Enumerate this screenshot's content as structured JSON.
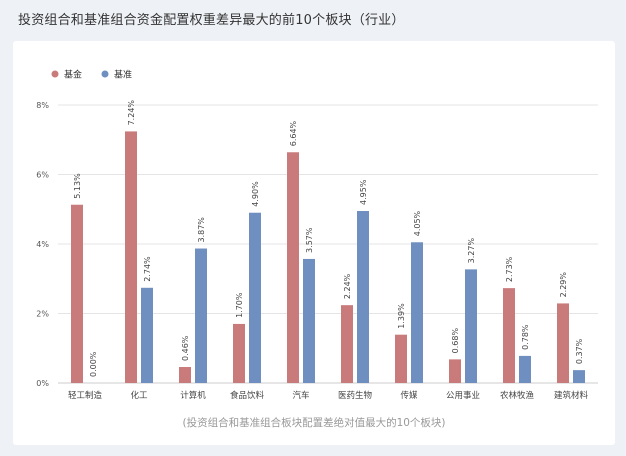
{
  "page": {
    "title": "投资组合和基准组合资金配置权重差异最大的前10个板块（行业）"
  },
  "colors": {
    "fund": "#c97b7b",
    "benchmark": "#6f8fc0",
    "grid": "#e5e5e5",
    "axis": "#cccccc"
  },
  "chart_data": {
    "type": "bar",
    "caption": "(投资组合和基准组合板块配置差绝对值最大的10个板块)",
    "categories": [
      "轻工制造",
      "化工",
      "计算机",
      "食品饮料",
      "汽车",
      "医药生物",
      "传媒",
      "公用事业",
      "农林牧渔",
      "建筑材料"
    ],
    "series": [
      {
        "name": "基金",
        "values": [
          5.13,
          7.24,
          0.46,
          1.7,
          6.64,
          2.24,
          1.39,
          0.68,
          2.73,
          2.29
        ],
        "labels": [
          "5.13%",
          "7.24%",
          "0.46%",
          "1.70%",
          "6.64%",
          "2.24%",
          "1.39%",
          "0.68%",
          "2.73%",
          "2.29%"
        ]
      },
      {
        "name": "基准",
        "values": [
          0.0,
          2.74,
          3.87,
          4.9,
          3.57,
          4.95,
          4.05,
          3.27,
          0.78,
          0.37
        ],
        "labels": [
          "0.00%",
          "2.74%",
          "3.87%",
          "4.90%",
          "3.57%",
          "4.95%",
          "4.05%",
          "3.27%",
          "0.78%",
          "0.37%"
        ]
      }
    ],
    "y_ticks": [
      "0%",
      "2%",
      "4%",
      "6%",
      "8%"
    ],
    "ylim": [
      0,
      8
    ],
    "legend": "top-left",
    "grid": true
  }
}
